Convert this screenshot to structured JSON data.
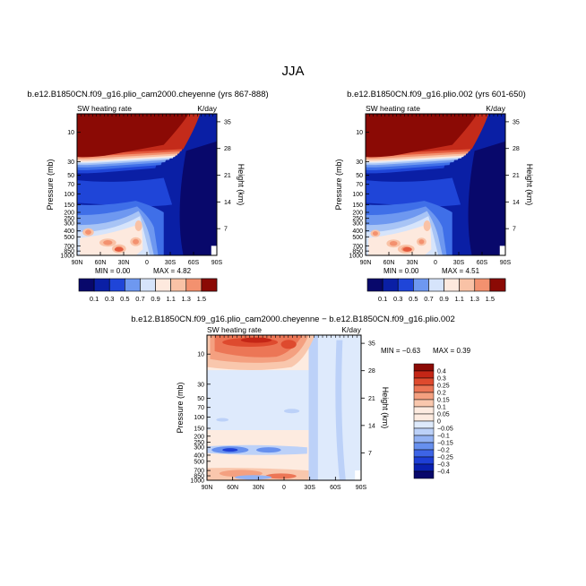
{
  "figure": {
    "title": "JJA"
  },
  "colors": {
    "abs_scale": [
      "#08086b",
      "#0a1fa5",
      "#1f45d8",
      "#3f6fe8",
      "#6e98f0",
      "#a8c4f5",
      "#d6e4fb",
      "#fde9de",
      "#f9c2a6",
      "#f3916f",
      "#e45a3d",
      "#c42b1a",
      "#8b0a05"
    ],
    "diff_scale": [
      "#08086b",
      "#0a20b0",
      "#1e3fd6",
      "#3d64e6",
      "#6790ee",
      "#93b2f3",
      "#bcd1f8",
      "#deeafc",
      "#fdebe0",
      "#f9c7ad",
      "#f4a080",
      "#ec7656",
      "#de4a2e",
      "#c42616",
      "#8b0a05"
    ]
  },
  "chart_data": [
    {
      "type": "heatmap",
      "panel": "top-left",
      "title": "b.e12.B1850CN.f09_g16.plio_cam2000.cheyenne (yrs 867-888)",
      "variable": "SW heating rate",
      "units": "K/day",
      "xlabel": "",
      "ylabel": "Pressure (mb)",
      "ylabel_right": "Height (km)",
      "x_ticks": [
        "90N",
        "60N",
        "30N",
        "0",
        "30S",
        "60S",
        "90S"
      ],
      "y_ticks": [
        "10",
        "30",
        "50",
        "70",
        "100",
        "150",
        "200",
        "250",
        "300",
        "400",
        "500",
        "700",
        "850",
        "1000"
      ],
      "y_ticks_right": [
        "35",
        "28",
        "21",
        "14",
        "7"
      ],
      "min_text": "MIN =    0.00",
      "max_text": "MAX =    4.82",
      "levels": [
        "0.1",
        "0.3",
        "0.5",
        "0.7",
        "0.9",
        "1.1",
        "1.3",
        "1.5"
      ],
      "colorbar": "horizontal-bottom"
    },
    {
      "type": "heatmap",
      "panel": "top-right",
      "title": "b.e12.B1850CN.f09_g16.plio.002 (yrs 601-650)",
      "variable": "SW heating rate",
      "units": "K/day",
      "xlabel": "",
      "ylabel": "Pressure (mb)",
      "ylabel_right": "Height (km)",
      "x_ticks": [
        "90N",
        "60N",
        "30N",
        "0",
        "30S",
        "60S",
        "90S"
      ],
      "y_ticks": [
        "10",
        "30",
        "50",
        "70",
        "100",
        "150",
        "200",
        "250",
        "300",
        "400",
        "500",
        "700",
        "850",
        "1000"
      ],
      "y_ticks_right": [
        "35",
        "28",
        "21",
        "14",
        "7"
      ],
      "min_text": "MIN =    0.00",
      "max_text": "MAX =    4.51",
      "levels": [
        "0.1",
        "0.3",
        "0.5",
        "0.7",
        "0.9",
        "1.1",
        "1.3",
        "1.5"
      ],
      "colorbar": "horizontal-bottom"
    },
    {
      "type": "heatmap",
      "panel": "bottom",
      "title": "b.e12.B1850CN.f09_g16.plio_cam2000.cheyenne − b.e12.B1850CN.f09_g16.plio.002",
      "variable": "SW heating rate",
      "units": "K/day",
      "xlabel": "",
      "ylabel": "Pressure (mb)",
      "ylabel_right": "Height (km)",
      "x_ticks": [
        "90N",
        "60N",
        "30N",
        "0",
        "30S",
        "60S",
        "90S"
      ],
      "y_ticks": [
        "10",
        "30",
        "50",
        "70",
        "100",
        "150",
        "200",
        "250",
        "300",
        "400",
        "500",
        "700",
        "850",
        "1000"
      ],
      "y_ticks_right": [
        "35",
        "28",
        "21",
        "14",
        "7"
      ],
      "min_text": "MIN =   −0.63",
      "max_text": "MAX =    0.39",
      "levels": [
        "0.4",
        "0.3",
        "0.25",
        "0.2",
        "0.15",
        "0.1",
        "0.05",
        "0",
        "−0.05",
        "−0.1",
        "−0.15",
        "−0.2",
        "−0.25",
        "−0.3",
        "−0.4"
      ],
      "colorbar": "vertical-right"
    }
  ]
}
